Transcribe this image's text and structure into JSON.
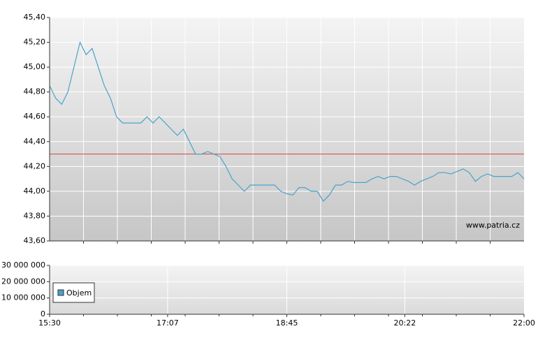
{
  "chart_data": [
    {
      "type": "line",
      "xlim": [
        "15:30",
        "22:00"
      ],
      "ylim": [
        43.6,
        45.4
      ],
      "yticks": [
        {
          "value": 43.6,
          "label": "43,60"
        },
        {
          "value": 43.8,
          "label": "43,80"
        },
        {
          "value": 44.0,
          "label": "44,00"
        },
        {
          "value": 44.2,
          "label": "44,20"
        },
        {
          "value": 44.4,
          "label": "44,40"
        },
        {
          "value": 44.6,
          "label": "44,60"
        },
        {
          "value": 44.8,
          "label": "44,80"
        },
        {
          "value": 45.0,
          "label": "45,00"
        },
        {
          "value": 45.2,
          "label": "45,20"
        },
        {
          "value": 45.4,
          "label": "45,40"
        }
      ],
      "grid": true,
      "color": "#4aa3cc",
      "reference_line": 44.3,
      "reference_color": "#e05050",
      "annotation": "www.patria.cz",
      "x": [
        "15:30",
        "15:35",
        "15:40",
        "15:45",
        "15:50",
        "15:55",
        "16:00",
        "16:05",
        "16:10",
        "16:15",
        "16:20",
        "16:25",
        "16:30",
        "16:35",
        "16:40",
        "16:45",
        "16:50",
        "16:55",
        "17:00",
        "17:05",
        "17:10",
        "17:15",
        "17:20",
        "17:25",
        "17:30",
        "17:35",
        "17:40",
        "17:45",
        "17:50",
        "17:55",
        "18:00",
        "18:05",
        "18:10",
        "18:15",
        "18:20",
        "18:25",
        "18:30",
        "18:35",
        "18:40",
        "18:45",
        "18:50",
        "18:55",
        "19:00",
        "19:05",
        "19:10",
        "19:15",
        "19:20",
        "19:25",
        "19:30",
        "19:35",
        "19:40",
        "19:45",
        "19:50",
        "19:55",
        "20:00",
        "20:05",
        "20:10",
        "20:15",
        "20:20",
        "20:25",
        "20:30",
        "20:35",
        "20:40",
        "20:45",
        "20:50",
        "20:55",
        "21:00",
        "21:05",
        "21:10",
        "21:15",
        "21:20",
        "21:25",
        "21:30",
        "21:35",
        "21:40",
        "21:45",
        "21:50",
        "21:55",
        "22:00"
      ],
      "values": [
        44.85,
        44.75,
        44.7,
        44.8,
        45.0,
        45.2,
        45.1,
        45.15,
        45.0,
        44.85,
        44.75,
        44.6,
        44.55,
        44.55,
        44.55,
        44.55,
        44.6,
        44.55,
        44.6,
        44.55,
        44.5,
        44.45,
        44.5,
        44.4,
        44.3,
        44.3,
        44.32,
        44.3,
        44.28,
        44.2,
        44.1,
        44.05,
        44.0,
        44.05,
        44.05,
        44.05,
        44.05,
        44.05,
        44.0,
        43.98,
        43.97,
        44.03,
        44.03,
        44.0,
        44.0,
        43.92,
        43.97,
        44.05,
        44.05,
        44.08,
        44.07,
        44.07,
        44.07,
        44.1,
        44.12,
        44.1,
        44.12,
        44.12,
        44.1,
        44.08,
        44.05,
        44.08,
        44.1,
        44.12,
        44.15,
        44.15,
        44.14,
        44.16,
        44.18,
        44.15,
        44.08,
        44.12,
        44.14,
        44.12,
        44.12,
        44.12,
        44.12,
        44.15,
        44.1
      ]
    },
    {
      "type": "bar",
      "xlim": [
        "15:30",
        "22:00"
      ],
      "xticks": [
        "15:30",
        "17:07",
        "18:45",
        "20:22",
        "22:00"
      ],
      "ylim": [
        0,
        30000000
      ],
      "yticks": [
        0,
        {
          "value": 10000000,
          "label": "10 000 000"
        },
        {
          "value": 20000000,
          "label": "20 000 000"
        },
        {
          "value": 30000000,
          "label": "30 000 000"
        }
      ],
      "grid": true,
      "legend": "lower-left",
      "series": [
        {
          "name": "Objem",
          "color": "#4a9fd0",
          "values": []
        }
      ]
    }
  ]
}
